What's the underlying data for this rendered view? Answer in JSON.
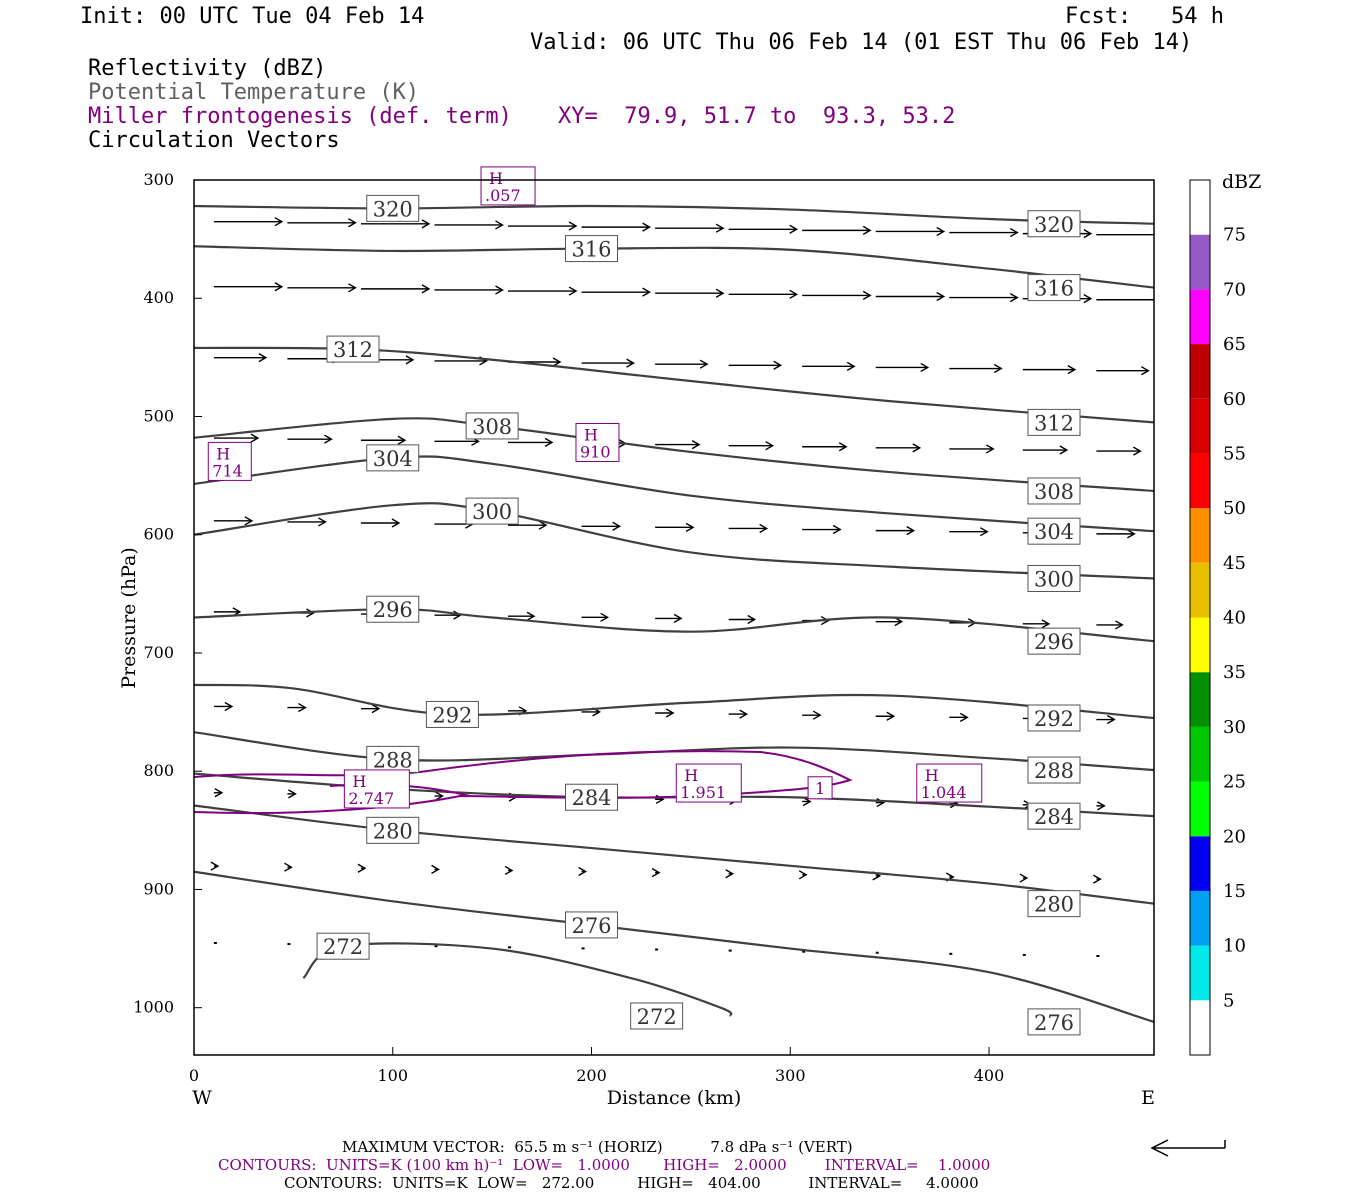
{
  "header": {
    "init": "Init: 00 UTC Tue 04 Feb 14",
    "fcst": "Fcst:   54 h",
    "valid": "Valid: 06 UTC Thu 06 Feb 14 (01 EST Thu 06 Feb 14)"
  },
  "fields": {
    "reflectivity": "Reflectivity (dBZ)",
    "theta": "Potential Temperature (K)",
    "frontogenesis": "Miller frontogenesis (def. term)",
    "xy": "XY=  79.9, 51.7 to  93.3, 53.2",
    "vectors": "Circulation Vectors"
  },
  "footer": {
    "max_vector": "MAXIMUM VECTOR:  65.5 m s⁻¹ (HORIZ)          7.8 dPa s⁻¹ (VERT)",
    "contours_purple": "CONTOURS:  UNITS=K (100 km h)⁻¹  LOW=   1.0000       HIGH=   2.0000        INTERVAL=    1.0000",
    "contours_black": "CONTOURS:  UNITS=K  LOW=   272.00         HIGH=   404.00          INTERVAL=     4.0000"
  },
  "colors": {
    "theta": "#404040",
    "fronto": "#800080",
    "vector": "#000000"
  },
  "chart_data": {
    "type": "line",
    "xlabel": "Distance (km)",
    "ylabel": "Pressure (hPa)",
    "xlim": [
      0,
      483
    ],
    "ylim": [
      1040,
      300
    ],
    "x_ticks": [
      0,
      100,
      200,
      300,
      400
    ],
    "y_ticks": [
      300,
      400,
      500,
      600,
      700,
      800,
      900,
      1000
    ],
    "x_end_labels": {
      "left": "W",
      "right": "E"
    },
    "colorbar": {
      "unit": "dBZ",
      "levels": [
        5,
        10,
        15,
        20,
        25,
        30,
        35,
        40,
        45,
        50,
        55,
        60,
        65,
        70,
        75
      ],
      "colors": [
        "#ffffff",
        "#00e8e8",
        "#00a0f0",
        "#0000f0",
        "#00ff00",
        "#00c800",
        "#009000",
        "#ffff00",
        "#e8c000",
        "#ff9000",
        "#ff0000",
        "#d80000",
        "#c00000",
        "#ff00ff",
        "#9858c8",
        "#ffffff"
      ]
    },
    "theta_contours": [
      {
        "name": "320",
        "x": [
          0,
          100,
          200,
          300,
          400,
          483
        ],
        "p": [
          322,
          324,
          322,
          325,
          333,
          337
        ]
      },
      {
        "name": "316",
        "x": [
          0,
          100,
          200,
          300,
          400,
          483
        ],
        "p": [
          356,
          360,
          358,
          359,
          375,
          391
        ]
      },
      {
        "name": "312",
        "x": [
          0,
          80,
          150,
          250,
          350,
          483
        ],
        "p": [
          442,
          443,
          452,
          470,
          487,
          505
        ]
      },
      {
        "name": "308",
        "x": [
          0,
          100,
          150,
          250,
          350,
          483
        ],
        "p": [
          518,
          502,
          508,
          530,
          547,
          563
        ]
      },
      {
        "name": "304",
        "x": [
          0,
          100,
          150,
          250,
          350,
          483
        ],
        "p": [
          557,
          535,
          540,
          567,
          582,
          597
        ]
      },
      {
        "name": "300",
        "x": [
          0,
          100,
          150,
          250,
          350,
          483
        ],
        "p": [
          600,
          575,
          580,
          615,
          627,
          637
        ]
      },
      {
        "name": "296",
        "x": [
          0,
          100,
          150,
          250,
          350,
          483
        ],
        "p": [
          670,
          663,
          670,
          682,
          670,
          690
        ]
      },
      {
        "name": "292",
        "x": [
          0,
          50,
          130,
          250,
          350,
          483
        ],
        "p": [
          727,
          730,
          752,
          742,
          736,
          755
        ]
      },
      {
        "name": "288",
        "x": [
          0,
          100,
          200,
          300,
          400,
          483
        ],
        "p": [
          767,
          790,
          786,
          780,
          789,
          799
        ]
      },
      {
        "name": "284",
        "x": [
          0,
          100,
          200,
          300,
          400,
          483
        ],
        "p": [
          802,
          815,
          822,
          822,
          830,
          838
        ]
      },
      {
        "name": "280",
        "x": [
          0,
          100,
          200,
          300,
          400,
          483
        ],
        "p": [
          829,
          850,
          865,
          880,
          895,
          912
        ]
      },
      {
        "name": "276",
        "x": [
          0,
          100,
          200,
          300,
          400,
          483
        ],
        "p": [
          885,
          910,
          930,
          950,
          970,
          1012
        ]
      },
      {
        "name": "272",
        "x": [
          55,
          75,
          150,
          220,
          265,
          270
        ],
        "p": [
          975,
          948,
          950,
          975,
          1000,
          1007
        ]
      }
    ],
    "fronto_maxima": [
      {
        "label": "H",
        "value": ".057",
        "x": 158,
        "p": 305
      },
      {
        "label": "H",
        "value": "714",
        "x": 18,
        "p": 538
      },
      {
        "label": "H",
        "value": "910",
        "x": 203,
        "p": 522
      },
      {
        "label": "H",
        "value": "2.747",
        "x": 92,
        "p": 815
      },
      {
        "label": "H",
        "value": "1.951",
        "x": 259,
        "p": 810
      },
      {
        "label": "H",
        "value": "1.044",
        "x": 380,
        "p": 810
      },
      {
        "label": "",
        "value": "1",
        "x": 315,
        "p": 814
      }
    ]
  }
}
